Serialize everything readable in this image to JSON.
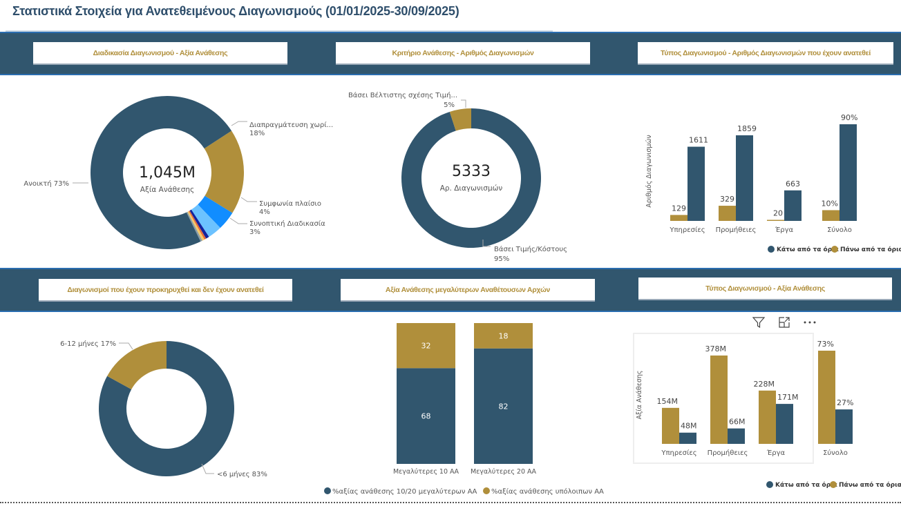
{
  "page": {
    "title": "Στατιστικά Στοιχεία για Ανατεθειμένους Διαγωνισμούς (01/01/2025-30/09/2025)"
  },
  "headers": {
    "h1": "Διαδικασία Διαγωνισμού - Αξία Ανάθεσης",
    "h2": "Κριτήριο Ανάθεσης - Αριθμός Διαγωνισμών",
    "h3": "Τύπος Διαγωνισμού - Αριθμός Διαγωνισμών που έχουν ανατεθεί",
    "h4": "Διαγωνισμοί που έχουν προκηρυχθεί και δεν έχουν ανατεθεί",
    "h5": "Αξία Ανάθεσης μεγαλύτερων Αναθέτουσων Αρχών",
    "h6": "Τύπος Διαγωνισμού - Αξία Ανάθεσης"
  },
  "colors": {
    "navy": "#31566e",
    "gold": "#b08f3b",
    "blue": "#118dff",
    "light_blue": "#6cc2ff",
    "dark_blue": "#12239e",
    "orange": "#e66c37",
    "yellow": "#f5c869",
    "grey": "#8b9ea8"
  },
  "toolbar": {
    "filter_icon": "filter-icon",
    "focus_icon": "focus-mode-icon",
    "more_icon": "more-options-icon"
  },
  "chart_data": [
    {
      "type": "pie",
      "title": "Διαδικασία Διαγωνισμού - Αξία Ανάθεσης",
      "center_value": "1,045M",
      "center_label": "Αξία Ανάθεσης",
      "slices": [
        {
          "label": "Ανοικτή",
          "value": 73,
          "display": "Ανοικτή 73%",
          "color": "#31566e"
        },
        {
          "label": "Διαπραγμάτευση χωρί...",
          "value": 18,
          "display": "18%",
          "color": "#b08f3b"
        },
        {
          "label": "Συμφωνία πλαίσιο",
          "value": 4,
          "display": "4%",
          "color": "#118dff"
        },
        {
          "label": "Συνοπτική Διαδικασία",
          "value": 3,
          "display": "3%",
          "color": "#6cc2ff"
        },
        {
          "label": "",
          "value": 0.7,
          "display": "",
          "color": "#12239e"
        },
        {
          "label": "",
          "value": 0.4,
          "display": "",
          "color": "#e66c37"
        },
        {
          "label": "",
          "value": 0.5,
          "display": "",
          "color": "#f5c869"
        },
        {
          "label": "",
          "value": 0.4,
          "display": "",
          "color": "#8b9ea8"
        }
      ]
    },
    {
      "type": "pie",
      "title": "Κριτήριο Ανάθεσης - Αριθμός Διαγωνισμών",
      "center_value": "5333",
      "center_label": "Αρ. Διαγωνισμών",
      "slices": [
        {
          "label": "Βάσει Τιμής/Κόστους",
          "value": 95,
          "display": "95%",
          "color": "#31566e"
        },
        {
          "label": "Βάσει Βέλτιστης σχέσης Τιμή...",
          "value": 5,
          "display": "5%",
          "color": "#b08f3b"
        }
      ]
    },
    {
      "type": "bar",
      "title": "Τύπος Διαγωνισμού - Αριθμός Διαγωνισμών που έχουν ανατεθεί",
      "ylabel": "Αριθμός Διαγωνισμών",
      "categories": [
        "Υπηρεσίες",
        "Προμήθειες",
        "Έργα"
      ],
      "series": [
        {
          "name": "Πάνω από τα όρια",
          "values": [
            129,
            329,
            20
          ],
          "color": "#b08f3b"
        },
        {
          "name": "Κάτω από τα όρια",
          "values": [
            1611,
            1859,
            663
          ],
          "color": "#31566e"
        }
      ],
      "total": {
        "category": "Σύνολο",
        "values_pct": [
          10,
          90
        ],
        "labels": [
          "10%",
          "90%"
        ]
      },
      "legend": [
        "Κάτω από τα όρια",
        "Πάνω από τα όρια"
      ]
    },
    {
      "type": "pie",
      "title": "Διαγωνισμοί που έχουν προκηρυχθεί και δεν έχουν ανατεθεί",
      "slices": [
        {
          "label": "<6 μήνες",
          "value": 83,
          "display": "<6 μήνες 83%",
          "color": "#31566e"
        },
        {
          "label": "6-12 μήνες",
          "value": 17,
          "display": "6-12 μήνες 17%",
          "color": "#b08f3b"
        }
      ]
    },
    {
      "type": "bar",
      "stacked": true,
      "title": "Αξία Ανάθεσης μεγαλύτερων Αναθέτουσων Αρχών",
      "categories": [
        "Μεγαλύτερες 10 ΑΑ",
        "Μεγαλύτερες 20 ΑΑ"
      ],
      "series": [
        {
          "name": "%αξίας ανάθεσης 10/20 μεγαλύτερων ΑΑ",
          "values": [
            68,
            82
          ],
          "color": "#31566e"
        },
        {
          "name": "%αξίας ανάθεσης υπόλοιπων ΑΑ",
          "values": [
            32,
            18
          ],
          "color": "#b08f3b"
        }
      ]
    },
    {
      "type": "bar",
      "title": "Τύπος Διαγωνισμού - Αξία Ανάθεσης",
      "ylabel": "Αξία Ανάθεσης",
      "categories": [
        "Υπηρεσίες",
        "Προμήθειες",
        "Έργα"
      ],
      "series": [
        {
          "name": "Πάνω από τα όρια",
          "values": [
            154,
            378,
            228
          ],
          "labels": [
            "154M",
            "378M",
            "228M"
          ],
          "color": "#b08f3b"
        },
        {
          "name": "Κάτω από τα όρια",
          "values": [
            48,
            66,
            171
          ],
          "labels": [
            "48M",
            "66M",
            "171M"
          ],
          "color": "#31566e"
        }
      ],
      "total": {
        "category": "Σύνολο",
        "values_pct": [
          73,
          27
        ],
        "labels": [
          "73%",
          "27%"
        ]
      },
      "legend": [
        "Κάτω από τα όρια",
        "Πάνω από τα όρια"
      ]
    }
  ]
}
